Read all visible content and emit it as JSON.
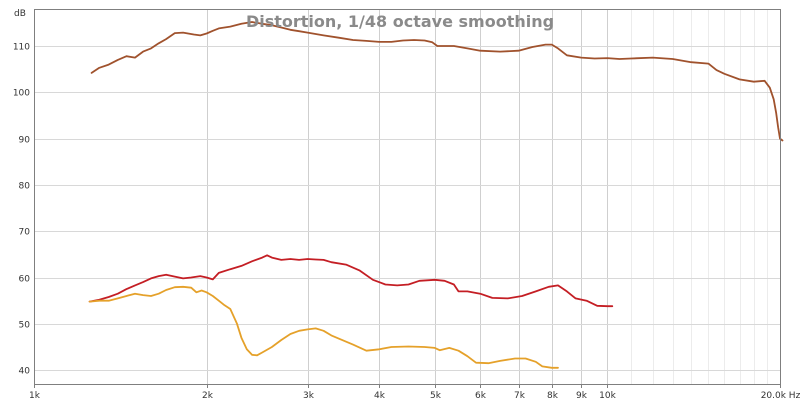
{
  "chart_data": {
    "type": "line",
    "title": "Distortion, 1/48 octave smoothing",
    "xlabel": "Hz",
    "ylabel": "dB",
    "x_scale": "log",
    "xlim": [
      1000,
      20000
    ],
    "ylim": [
      37,
      118
    ],
    "grid": true,
    "x_ticks": [
      {
        "value": 1000,
        "label": "1k"
      },
      {
        "value": 2000,
        "label": "2k"
      },
      {
        "value": 3000,
        "label": "3k"
      },
      {
        "value": 4000,
        "label": "4k"
      },
      {
        "value": 5000,
        "label": "5k"
      },
      {
        "value": 6000,
        "label": "6k"
      },
      {
        "value": 7000,
        "label": "7k"
      },
      {
        "value": 8000,
        "label": "8k"
      },
      {
        "value": 9000,
        "label": "9k"
      },
      {
        "value": 10000,
        "label": "10k"
      },
      {
        "value": 20000,
        "label": "20.0k Hz"
      }
    ],
    "x_minor_ticks": [
      11000,
      12000,
      13000,
      14000,
      15000,
      16000,
      17000,
      18000,
      19000
    ],
    "y_ticks": [
      {
        "value": 40,
        "label": "40"
      },
      {
        "value": 50,
        "label": "50"
      },
      {
        "value": 60,
        "label": "60"
      },
      {
        "value": 70,
        "label": "70"
      },
      {
        "value": 80,
        "label": "80"
      },
      {
        "value": 90,
        "label": "90"
      },
      {
        "value": 100,
        "label": "100"
      },
      {
        "value": 110,
        "label": "110"
      }
    ],
    "series": [
      {
        "color": "#a0522d",
        "points": [
          [
            1260,
            104.2
          ],
          [
            1300,
            105.3
          ],
          [
            1350,
            106.0
          ],
          [
            1400,
            107.0
          ],
          [
            1450,
            107.8
          ],
          [
            1500,
            107.5
          ],
          [
            1550,
            108.8
          ],
          [
            1600,
            109.5
          ],
          [
            1650,
            110.6
          ],
          [
            1700,
            111.5
          ],
          [
            1760,
            112.8
          ],
          [
            1820,
            112.9
          ],
          [
            1900,
            112.5
          ],
          [
            1950,
            112.3
          ],
          [
            2000,
            112.7
          ],
          [
            2050,
            113.3
          ],
          [
            2100,
            113.8
          ],
          [
            2200,
            114.2
          ],
          [
            2300,
            114.8
          ],
          [
            2400,
            115.2
          ],
          [
            2500,
            114.8
          ],
          [
            2600,
            114.5
          ],
          [
            2700,
            114.0
          ],
          [
            2800,
            113.5
          ],
          [
            2900,
            113.2
          ],
          [
            3000,
            112.9
          ],
          [
            3200,
            112.3
          ],
          [
            3400,
            111.8
          ],
          [
            3600,
            111.3
          ],
          [
            3800,
            111.1
          ],
          [
            4000,
            110.9
          ],
          [
            4200,
            110.9
          ],
          [
            4400,
            111.2
          ],
          [
            4600,
            111.3
          ],
          [
            4800,
            111.2
          ],
          [
            4950,
            110.8
          ],
          [
            5050,
            110.0
          ],
          [
            5200,
            110.0
          ],
          [
            5400,
            110.0
          ],
          [
            5700,
            109.5
          ],
          [
            6000,
            109.0
          ],
          [
            6500,
            108.8
          ],
          [
            7000,
            109.0
          ],
          [
            7400,
            109.8
          ],
          [
            7800,
            110.3
          ],
          [
            8000,
            110.3
          ],
          [
            8200,
            109.5
          ],
          [
            8500,
            108.0
          ],
          [
            9000,
            107.5
          ],
          [
            9500,
            107.3
          ],
          [
            10000,
            107.4
          ],
          [
            10500,
            107.2
          ],
          [
            11000,
            107.3
          ],
          [
            12000,
            107.5
          ],
          [
            13000,
            107.2
          ],
          [
            14000,
            106.5
          ],
          [
            15000,
            106.2
          ],
          [
            15500,
            104.8
          ],
          [
            16000,
            104.0
          ],
          [
            17000,
            102.8
          ],
          [
            18000,
            102.3
          ],
          [
            18800,
            102.5
          ],
          [
            19200,
            101.0
          ],
          [
            19500,
            98.5
          ],
          [
            19700,
            95.5
          ],
          [
            19850,
            92.5
          ],
          [
            20000,
            90.0
          ],
          [
            20200,
            89.6
          ]
        ]
      },
      {
        "color": "#c41e24",
        "points": [
          [
            1250,
            54.8
          ],
          [
            1300,
            55.2
          ],
          [
            1350,
            55.8
          ],
          [
            1400,
            56.5
          ],
          [
            1450,
            57.5
          ],
          [
            1500,
            58.3
          ],
          [
            1550,
            59.0
          ],
          [
            1600,
            59.8
          ],
          [
            1650,
            60.3
          ],
          [
            1700,
            60.6
          ],
          [
            1760,
            60.2
          ],
          [
            1820,
            59.8
          ],
          [
            1880,
            60.0
          ],
          [
            1950,
            60.3
          ],
          [
            2000,
            60.0
          ],
          [
            2050,
            59.6
          ],
          [
            2100,
            61.0
          ],
          [
            2200,
            61.8
          ],
          [
            2300,
            62.5
          ],
          [
            2400,
            63.5
          ],
          [
            2500,
            64.3
          ],
          [
            2550,
            64.8
          ],
          [
            2600,
            64.3
          ],
          [
            2700,
            63.8
          ],
          [
            2800,
            64.0
          ],
          [
            2900,
            63.8
          ],
          [
            3000,
            64.0
          ],
          [
            3100,
            63.9
          ],
          [
            3200,
            63.8
          ],
          [
            3300,
            63.3
          ],
          [
            3500,
            62.8
          ],
          [
            3700,
            61.5
          ],
          [
            3900,
            59.5
          ],
          [
            4100,
            58.5
          ],
          [
            4300,
            58.3
          ],
          [
            4500,
            58.5
          ],
          [
            4700,
            59.3
          ],
          [
            5000,
            59.5
          ],
          [
            5200,
            59.3
          ],
          [
            5400,
            58.5
          ],
          [
            5500,
            57.0
          ],
          [
            5700,
            57.0
          ],
          [
            6000,
            56.5
          ],
          [
            6300,
            55.6
          ],
          [
            6700,
            55.5
          ],
          [
            7100,
            56.0
          ],
          [
            7500,
            57.0
          ],
          [
            7900,
            58.0
          ],
          [
            8200,
            58.3
          ],
          [
            8500,
            57.0
          ],
          [
            8800,
            55.5
          ],
          [
            9200,
            55.0
          ],
          [
            9600,
            53.9
          ],
          [
            10000,
            53.8
          ],
          [
            10200,
            53.8
          ]
        ]
      },
      {
        "color": "#e5a12a",
        "points": [
          [
            1250,
            54.8
          ],
          [
            1300,
            55.0
          ],
          [
            1350,
            55.0
          ],
          [
            1400,
            55.5
          ],
          [
            1450,
            56.0
          ],
          [
            1500,
            56.5
          ],
          [
            1550,
            56.2
          ],
          [
            1600,
            56.0
          ],
          [
            1650,
            56.5
          ],
          [
            1700,
            57.3
          ],
          [
            1760,
            57.9
          ],
          [
            1820,
            58.0
          ],
          [
            1880,
            57.8
          ],
          [
            1920,
            56.8
          ],
          [
            1960,
            57.2
          ],
          [
            2000,
            56.8
          ],
          [
            2050,
            56.0
          ],
          [
            2100,
            55.0
          ],
          [
            2150,
            54.0
          ],
          [
            2200,
            53.2
          ],
          [
            2260,
            50.0
          ],
          [
            2300,
            47.0
          ],
          [
            2350,
            44.5
          ],
          [
            2400,
            43.3
          ],
          [
            2450,
            43.2
          ],
          [
            2500,
            43.8
          ],
          [
            2600,
            45.0
          ],
          [
            2700,
            46.5
          ],
          [
            2800,
            47.8
          ],
          [
            2900,
            48.5
          ],
          [
            3000,
            48.8
          ],
          [
            3100,
            49.0
          ],
          [
            3200,
            48.5
          ],
          [
            3300,
            47.5
          ],
          [
            3400,
            46.8
          ],
          [
            3600,
            45.5
          ],
          [
            3800,
            44.2
          ],
          [
            4000,
            44.5
          ],
          [
            4200,
            45.0
          ],
          [
            4500,
            45.1
          ],
          [
            4800,
            45.0
          ],
          [
            5000,
            44.8
          ],
          [
            5100,
            44.3
          ],
          [
            5300,
            44.8
          ],
          [
            5500,
            44.2
          ],
          [
            5700,
            43.0
          ],
          [
            5900,
            41.6
          ],
          [
            6200,
            41.5
          ],
          [
            6500,
            42.0
          ],
          [
            6900,
            42.5
          ],
          [
            7200,
            42.5
          ],
          [
            7500,
            41.8
          ],
          [
            7700,
            40.8
          ],
          [
            8000,
            40.5
          ],
          [
            8200,
            40.5
          ]
        ]
      }
    ]
  }
}
